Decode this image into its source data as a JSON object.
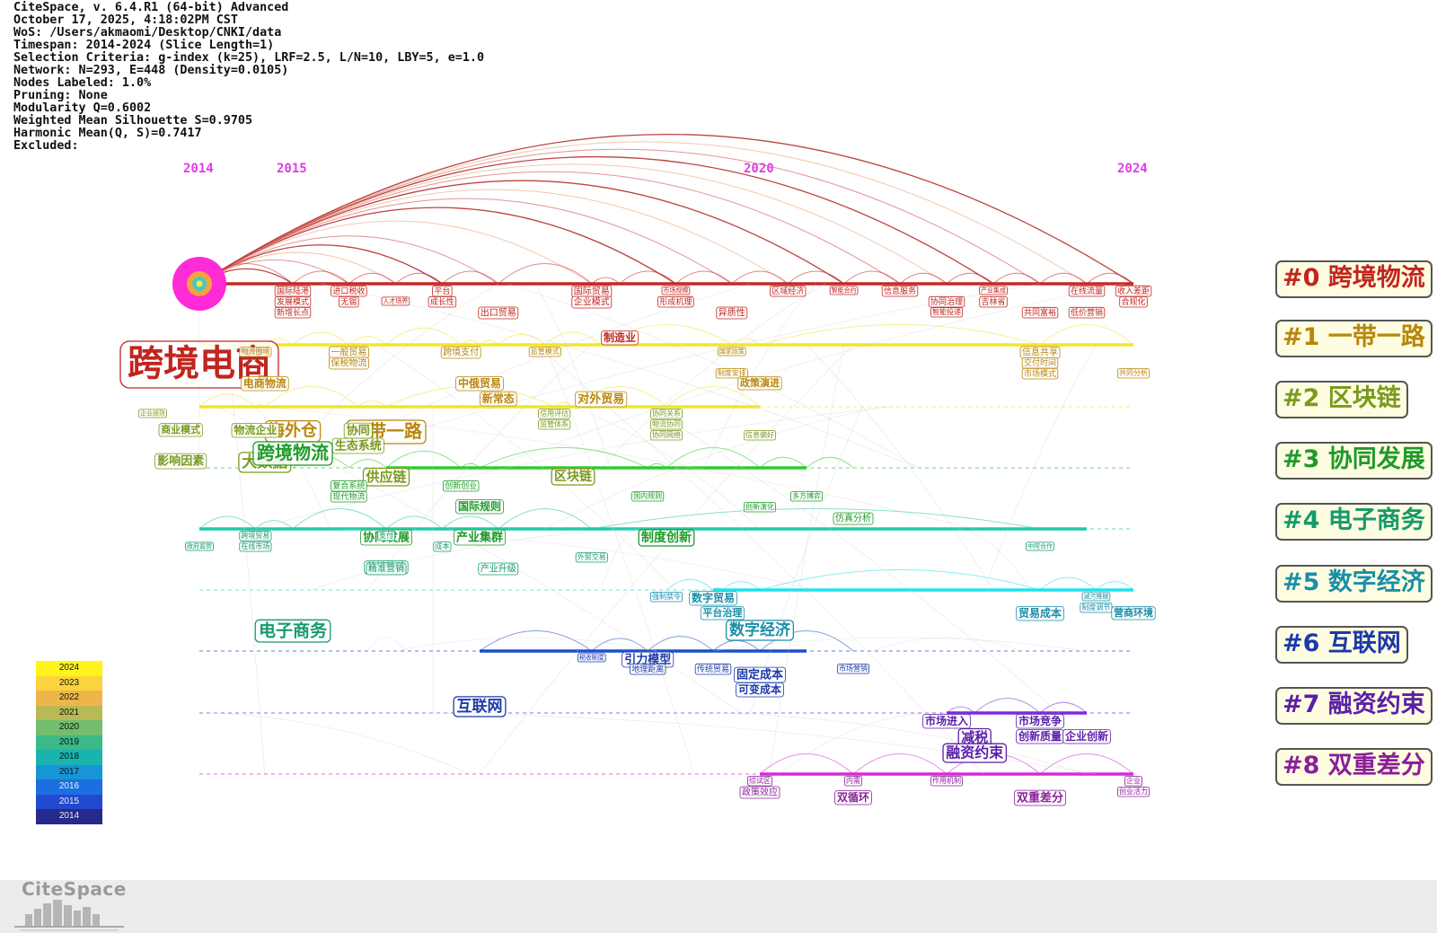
{
  "header": {
    "lines": [
      "CiteSpace, v. 6.4.R1 (64-bit) Advanced",
      "October 17, 2025, 4:18:02PM CST",
      "WoS: /Users/akmaomi/Desktop/CNKI/data",
      "Timespan: 2014-2024 (Slice Length=1)",
      "Selection Criteria: g-index (k=25), LRF=2.5, L/N=10, LBY=5, e=1.0",
      "Network: N=293, E=448 (Density=0.0105)",
      "Nodes Labeled: 1.0%",
      "Pruning: None",
      "Modularity Q=0.6002",
      "Weighted Mean Silhouette S=0.9705",
      "Harmonic Mean(Q, S)=0.7417",
      "Excluded:"
    ]
  },
  "years": [
    {
      "label": "2014",
      "value": 2014
    },
    {
      "label": "2015",
      "value": 2015
    },
    {
      "label": "2020",
      "value": 2020
    },
    {
      "label": "2024",
      "value": 2024
    }
  ],
  "clusters": [
    {
      "label": "#0 跨境物流",
      "color": "#c62828",
      "text_color": "#c0261f",
      "start": 2014,
      "end": 2024,
      "keywords": [
        {
          "text": "跨境电商",
          "year": 2014,
          "size": 40,
          "row": -1
        },
        {
          "text": "国际陆港",
          "year": 2015,
          "size": 9,
          "row": 0
        },
        {
          "text": "发展模式",
          "year": 2015,
          "size": 9,
          "row": 1
        },
        {
          "text": "新增长点",
          "year": 2015,
          "size": 9,
          "row": 2
        },
        {
          "text": "进口税收",
          "year": 2015.6,
          "size": 9,
          "row": 0
        },
        {
          "text": "无锡",
          "year": 2015.6,
          "size": 9,
          "row": 1
        },
        {
          "text": "人才培养",
          "year": 2016.1,
          "size": 7,
          "row": 1
        },
        {
          "text": "平台",
          "year": 2016.6,
          "size": 9,
          "row": 0
        },
        {
          "text": "成长性",
          "year": 2016.6,
          "size": 9,
          "row": 1
        },
        {
          "text": "出口贸易",
          "year": 2017.2,
          "size": 10,
          "row": 2
        },
        {
          "text": "国际贸易",
          "year": 2018.2,
          "size": 10,
          "row": 0
        },
        {
          "text": "企业模式",
          "year": 2018.2,
          "size": 10,
          "row": 1
        },
        {
          "text": "制造业",
          "year": 2018.5,
          "size": 12,
          "row": 3
        },
        {
          "text": "市场规模",
          "year": 2019.1,
          "size": 7,
          "row": 0
        },
        {
          "text": "形成机理",
          "year": 2019.1,
          "size": 9,
          "row": 1
        },
        {
          "text": "异质性",
          "year": 2019.7,
          "size": 10,
          "row": 2
        },
        {
          "text": "区域经济",
          "year": 2020.3,
          "size": 9,
          "row": 0
        },
        {
          "text": "智能合约",
          "year": 2020.9,
          "size": 7,
          "row": 0
        },
        {
          "text": "信息服务",
          "year": 2021.5,
          "size": 9,
          "row": 0
        },
        {
          "text": "协同治理",
          "year": 2022.0,
          "size": 9,
          "row": 1
        },
        {
          "text": "智能投递",
          "year": 2022.0,
          "size": 8,
          "row": 2
        },
        {
          "text": "产业集成",
          "year": 2022.5,
          "size": 7,
          "row": 0
        },
        {
          "text": "吉林省",
          "year": 2022.5,
          "size": 9,
          "row": 1
        },
        {
          "text": "共同富裕",
          "year": 2023.0,
          "size": 9,
          "row": 2
        },
        {
          "text": "在线流量",
          "year": 2023.5,
          "size": 9,
          "row": 0
        },
        {
          "text": "低价营销",
          "year": 2023.5,
          "size": 9,
          "row": 2
        },
        {
          "text": "收入差距",
          "year": 2024,
          "size": 9,
          "row": 0
        },
        {
          "text": "合规化",
          "year": 2024,
          "size": 9,
          "row": 1
        }
      ]
    },
    {
      "label": "#1 一带一路",
      "color": "#f2e62a",
      "text_color": "#b8860b",
      "start": 2014,
      "end": 2024,
      "keywords": [
        {
          "text": "物流困境",
          "year": 2014.6,
          "size": 8,
          "row": 0
        },
        {
          "text": "电商物流",
          "year": 2014.7,
          "size": 12,
          "row": 2
        },
        {
          "text": "海外仓",
          "year": 2015,
          "size": 18,
          "row": 5
        },
        {
          "text": "一般贸易",
          "year": 2015.6,
          "size": 10,
          "row": 0
        },
        {
          "text": "保税物流",
          "year": 2015.6,
          "size": 10,
          "row": 1
        },
        {
          "text": "一带一路",
          "year": 2016.0,
          "size": 20,
          "row": 5
        },
        {
          "text": "跨境支付",
          "year": 2016.8,
          "size": 10,
          "row": 0
        },
        {
          "text": "中俄贸易",
          "year": 2017.0,
          "size": 12,
          "row": 2
        },
        {
          "text": "新常态",
          "year": 2017.2,
          "size": 12,
          "row": 3
        },
        {
          "text": "监管模式",
          "year": 2017.7,
          "size": 8,
          "row": 0
        },
        {
          "text": "对外贸易",
          "year": 2018.3,
          "size": 13,
          "row": 3
        },
        {
          "text": "国家政策",
          "year": 2019.7,
          "size": 7,
          "row": 0
        },
        {
          "text": "制度安排",
          "year": 2019.7,
          "size": 8,
          "row": 2
        },
        {
          "text": "政策演进",
          "year": 2020.0,
          "size": 11,
          "row": 2
        },
        {
          "text": "信息共享",
          "year": 2023.0,
          "size": 10,
          "row": 0
        },
        {
          "text": "交付时间",
          "year": 2023.0,
          "size": 9,
          "row": 1
        },
        {
          "text": "市场模式",
          "year": 2023.0,
          "size": 9,
          "row": 2
        },
        {
          "text": "共同分析",
          "year": 2024,
          "size": 8,
          "row": 2
        }
      ]
    },
    {
      "label": "#2 区块链",
      "color": "#f0e62c",
      "text_color": "#7a9a1e",
      "start": 2014,
      "end": 2020,
      "keywords": [
        {
          "text": "企业绩效",
          "year": 2013.5,
          "size": 7,
          "row": 0
        },
        {
          "text": "商业模式",
          "year": 2013.8,
          "size": 11,
          "row": 1
        },
        {
          "text": "影响因素",
          "year": 2013.8,
          "size": 13,
          "row": 3
        },
        {
          "text": "物流企业",
          "year": 2014.6,
          "size": 12,
          "row": 1
        },
        {
          "text": "大数据",
          "year": 2014.7,
          "size": 17,
          "row": 3
        },
        {
          "text": "协同",
          "year": 2015.7,
          "size": 13,
          "row": 1
        },
        {
          "text": "生态系统",
          "year": 2015.7,
          "size": 13,
          "row": 2
        },
        {
          "text": "供应链",
          "year": 2016.0,
          "size": 15,
          "row": 4
        },
        {
          "text": "信用评估",
          "year": 2017.8,
          "size": 8,
          "row": 0
        },
        {
          "text": "监管体系",
          "year": 2017.8,
          "size": 8,
          "row": 1
        },
        {
          "text": "区块链",
          "year": 2018.0,
          "size": 14,
          "row": 4
        },
        {
          "text": "协同关系",
          "year": 2019.0,
          "size": 8,
          "row": 0
        },
        {
          "text": "物流协同",
          "year": 2019.0,
          "size": 8,
          "row": 1
        },
        {
          "text": "协同网络",
          "year": 2019.0,
          "size": 8,
          "row": 2
        },
        {
          "text": "信息偏好",
          "year": 2020.0,
          "size": 8,
          "row": 2
        }
      ]
    },
    {
      "label": "#3 协同发展",
      "color": "#2ecc2e",
      "text_color": "#1f9a2a",
      "start": 2016,
      "end": 2020.5,
      "keywords": [
        {
          "text": "跨境物流",
          "year": 2015,
          "size": 20,
          "row": -1
        },
        {
          "text": "复合系统",
          "year": 2015.6,
          "size": 9,
          "row": 1
        },
        {
          "text": "现代物流",
          "year": 2015.6,
          "size": 9,
          "row": 2
        },
        {
          "text": "协同发展",
          "year": 2016.0,
          "size": 13,
          "row": 4
        },
        {
          "text": "创新创业",
          "year": 2016.8,
          "size": 9,
          "row": 1
        },
        {
          "text": "国际规则",
          "year": 2017.0,
          "size": 12,
          "row": 2
        },
        {
          "text": "产业集群",
          "year": 2017.0,
          "size": 13,
          "row": 4
        },
        {
          "text": "国内规则",
          "year": 2018.8,
          "size": 8,
          "row": 2
        },
        {
          "text": "制度创新",
          "year": 2019.0,
          "size": 14,
          "row": 4
        },
        {
          "text": "创新演化",
          "year": 2020.0,
          "size": 8,
          "row": 3
        },
        {
          "text": "多方博弈",
          "year": 2020.5,
          "size": 8,
          "row": 2
        },
        {
          "text": "仿真分析",
          "year": 2021.0,
          "size": 10,
          "row": 4
        }
      ]
    },
    {
      "label": "#4 电子商务",
      "color": "#20c8a8",
      "text_color": "#169a6a",
      "start": 2014,
      "end": 2023.5,
      "keywords": [
        {
          "text": "政府监管",
          "year": 2014.0,
          "size": 7,
          "row": 1
        },
        {
          "text": "跨境贸易",
          "year": 2014.6,
          "size": 8,
          "row": 0
        },
        {
          "text": "在线市场",
          "year": 2014.6,
          "size": 8,
          "row": 1
        },
        {
          "text": "支付",
          "year": 2016.0,
          "size": 8,
          "row": 0
        },
        {
          "text": "营销策略",
          "year": 2016.0,
          "size": 11,
          "row": 2
        },
        {
          "text": "精准营销",
          "year": 2016.0,
          "size": 10,
          "row": 3
        },
        {
          "text": "成本",
          "year": 2016.6,
          "size": 8,
          "row": 1
        },
        {
          "text": "产业升级",
          "year": 2017.2,
          "size": 10,
          "row": 3
        },
        {
          "text": "外贸交易",
          "year": 2018.2,
          "size": 8,
          "row": 2
        },
        {
          "text": "电子商务",
          "year": 2015.0,
          "size": 19,
          "row": 6
        },
        {
          "text": "中阿合作",
          "year": 2023.0,
          "size": 7,
          "row": 1
        }
      ]
    },
    {
      "label": "#5 数字经济",
      "color": "#1fe3ea",
      "text_color": "#1a8ea8",
      "start": 2019.5,
      "end": 2024,
      "keywords": [
        {
          "text": "强制禁令",
          "year": 2019.0,
          "size": 8,
          "row": 0
        },
        {
          "text": "平台治理",
          "year": 2019.6,
          "size": 11,
          "row": 1
        },
        {
          "text": "数字贸易",
          "year": 2019.5,
          "size": 12,
          "row": 0
        },
        {
          "text": "数字经济",
          "year": 2020.0,
          "size": 17,
          "row": 2
        },
        {
          "text": "贸易成本",
          "year": 2023.0,
          "size": 12,
          "row": 1
        },
        {
          "text": "减污降碳",
          "year": 2023.6,
          "size": 7,
          "row": 0
        },
        {
          "text": "制度调节",
          "year": 2023.6,
          "size": 8,
          "row": 1
        },
        {
          "text": "营商环境",
          "year": 2024,
          "size": 11,
          "row": 1
        }
      ]
    },
    {
      "label": "#6 互联网",
      "color": "#1a4fcc",
      "text_color": "#1c3aa8",
      "start": 2017.0,
      "end": 2020.5,
      "keywords": [
        {
          "text": "税收制度",
          "year": 2018.2,
          "size": 7,
          "row": 0
        },
        {
          "text": "引力模型",
          "year": 2018.8,
          "size": 13,
          "row": 0
        },
        {
          "text": "地理距离",
          "year": 2018.8,
          "size": 9,
          "row": 1
        },
        {
          "text": "传统贸易",
          "year": 2019.5,
          "size": 9,
          "row": 1
        },
        {
          "text": "固定成本",
          "year": 2020.0,
          "size": 13,
          "row": 1
        },
        {
          "text": "可变成本",
          "year": 2020.0,
          "size": 12,
          "row": 2
        },
        {
          "text": "市场营销",
          "year": 2021.0,
          "size": 8,
          "row": 1
        },
        {
          "text": "互联网",
          "year": 2017.0,
          "size": 17,
          "row": 3
        }
      ]
    },
    {
      "label": "#7 融资约束",
      "color": "#7a2be0",
      "text_color": "#5a1fa8",
      "start": 2022.0,
      "end": 2023.5,
      "keywords": [
        {
          "text": "市场进入",
          "year": 2022.0,
          "size": 12,
          "row": 0
        },
        {
          "text": "减税",
          "year": 2022.3,
          "size": 15,
          "row": 1
        },
        {
          "text": "融资约束",
          "year": 2022.3,
          "size": 16,
          "row": 2
        },
        {
          "text": "市场竞争",
          "year": 2023.0,
          "size": 12,
          "row": 0
        },
        {
          "text": "创新质量",
          "year": 2023.0,
          "size": 12,
          "row": 1
        },
        {
          "text": "企业创新",
          "year": 2023.5,
          "size": 12,
          "row": 1
        }
      ]
    },
    {
      "label": "#8 双重差分",
      "color": "#d62bd6",
      "text_color": "#8a1f9a",
      "start": 2020.0,
      "end": 2024,
      "keywords": [
        {
          "text": "综试区",
          "year": 2020.0,
          "size": 8,
          "row": 0
        },
        {
          "text": "政策效应",
          "year": 2020.0,
          "size": 10,
          "row": 1
        },
        {
          "text": "内需",
          "year": 2021.0,
          "size": 8,
          "row": 0
        },
        {
          "text": "双循环",
          "year": 2021.0,
          "size": 12,
          "row": 1
        },
        {
          "text": "作用机制",
          "year": 2022.0,
          "size": 8,
          "row": 0
        },
        {
          "text": "双重差分",
          "year": 2023.0,
          "size": 13,
          "row": 1
        },
        {
          "text": "企业",
          "year": 2024,
          "size": 8,
          "row": 0
        },
        {
          "text": "创业活力",
          "year": 2024,
          "size": 8,
          "row": 1
        }
      ]
    }
  ],
  "legend": [
    {
      "year": "2024",
      "color": "#fff41a"
    },
    {
      "year": "2023",
      "color": "#fbd33e"
    },
    {
      "year": "2022",
      "color": "#eeb64a"
    },
    {
      "year": "2021",
      "color": "#b8bb55"
    },
    {
      "year": "2020",
      "color": "#72be6e"
    },
    {
      "year": "2019",
      "color": "#3bb988"
    },
    {
      "year": "2018",
      "color": "#19b4b0"
    },
    {
      "year": "2017",
      "color": "#1895d6"
    },
    {
      "year": "2016",
      "color": "#1c6fe0"
    },
    {
      "year": "2015",
      "color": "#2349d0"
    },
    {
      "year": "2014",
      "color": "#262a8a"
    }
  ],
  "logo": {
    "text": "CiteSpace"
  }
}
